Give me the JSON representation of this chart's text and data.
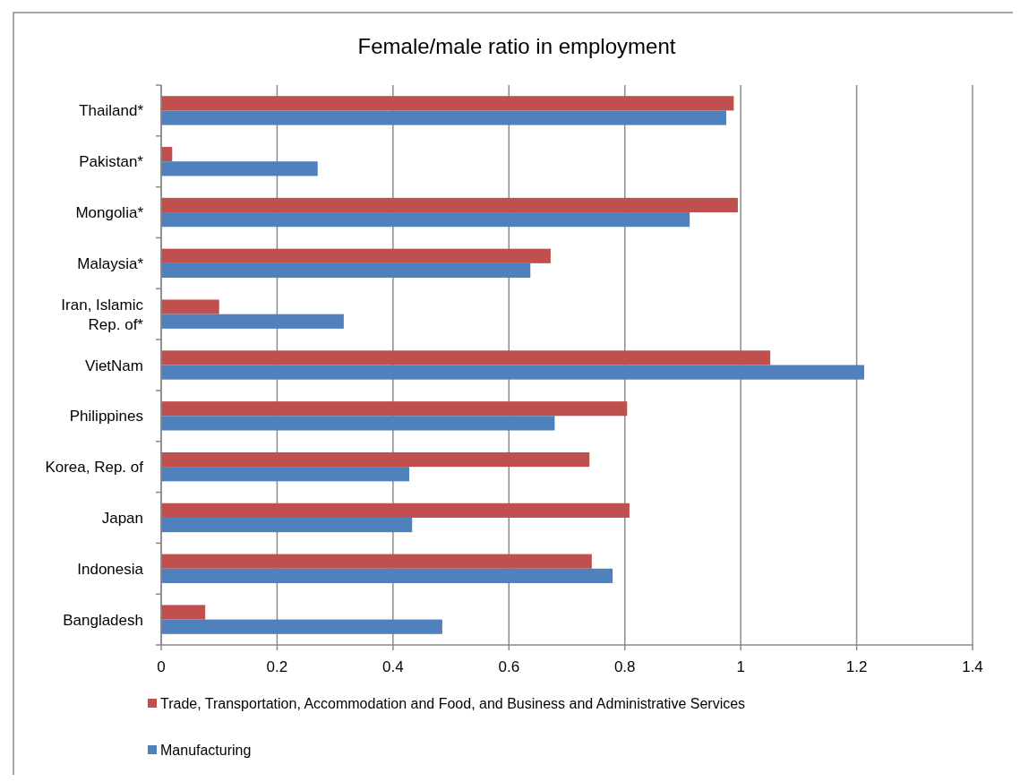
{
  "chart_data": {
    "type": "bar",
    "orientation": "horizontal",
    "title": "Female/male ratio in employment",
    "categories": [
      "Thailand*",
      "Pakistan*",
      "Mongolia*",
      "Malaysia*",
      "Iran, Islamic Rep. of*",
      "VietNam",
      "Philippines",
      "Korea, Rep. of",
      "Japan",
      "Indonesia",
      "Bangladesh"
    ],
    "series": [
      {
        "name": "Trade, Transportation, Accommodation and Food, and Business and Administrative Services",
        "color": "#c0504d",
        "values": [
          0.988,
          0.019,
          0.995,
          0.672,
          0.1,
          1.051,
          0.804,
          0.739,
          0.808,
          0.743,
          0.076
        ]
      },
      {
        "name": "Manufacturing",
        "color": "#4f81bd",
        "values": [
          0.975,
          0.27,
          0.912,
          0.637,
          0.315,
          1.213,
          0.679,
          0.428,
          0.433,
          0.779,
          0.485
        ]
      }
    ],
    "xlim": [
      0,
      1.4
    ],
    "xticks": [
      0,
      0.2,
      0.4,
      0.6,
      0.8,
      1,
      1.2,
      1.4
    ],
    "grid": "x",
    "legend": "bottom"
  }
}
